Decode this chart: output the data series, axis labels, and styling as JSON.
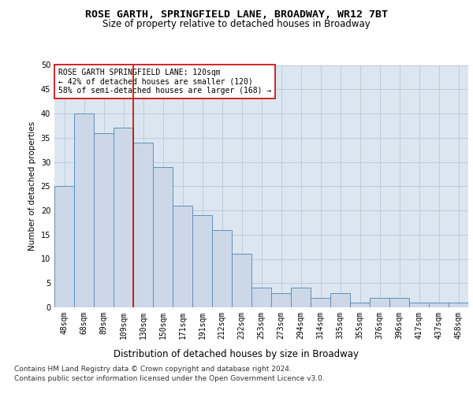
{
  "title": "ROSE GARTH, SPRINGFIELD LANE, BROADWAY, WR12 7BT",
  "subtitle": "Size of property relative to detached houses in Broadway",
  "xlabel": "Distribution of detached houses by size in Broadway",
  "ylabel": "Number of detached properties",
  "categories": [
    "48sqm",
    "68sqm",
    "89sqm",
    "109sqm",
    "130sqm",
    "150sqm",
    "171sqm",
    "191sqm",
    "212sqm",
    "232sqm",
    "253sqm",
    "273sqm",
    "294sqm",
    "314sqm",
    "335sqm",
    "355sqm",
    "376sqm",
    "396sqm",
    "417sqm",
    "437sqm",
    "458sqm"
  ],
  "values": [
    25,
    40,
    36,
    37,
    34,
    29,
    21,
    19,
    16,
    11,
    4,
    3,
    4,
    2,
    3,
    1,
    2,
    2,
    1,
    1,
    1
  ],
  "bar_color": "#ccd8e8",
  "bar_edge_color": "#6090b8",
  "vline_color": "#cc0000",
  "annotation_text": "ROSE GARTH SPRINGFIELD LANE: 120sqm\n← 42% of detached houses are smaller (120)\n58% of semi-detached houses are larger (168) →",
  "annotation_box_color": "#ffffff",
  "annotation_box_edge": "#cc0000",
  "ylim": [
    0,
    50
  ],
  "yticks": [
    0,
    5,
    10,
    15,
    20,
    25,
    30,
    35,
    40,
    45,
    50
  ],
  "grid_color": "#b8c8d8",
  "background_color": "#dce6f0",
  "footer_line1": "Contains HM Land Registry data © Crown copyright and database right 2024.",
  "footer_line2": "Contains public sector information licensed under the Open Government Licence v3.0.",
  "title_fontsize": 9.5,
  "subtitle_fontsize": 8.5,
  "xlabel_fontsize": 8.5,
  "ylabel_fontsize": 7.5,
  "tick_fontsize": 7,
  "annotation_fontsize": 7,
  "footer_fontsize": 6.5
}
